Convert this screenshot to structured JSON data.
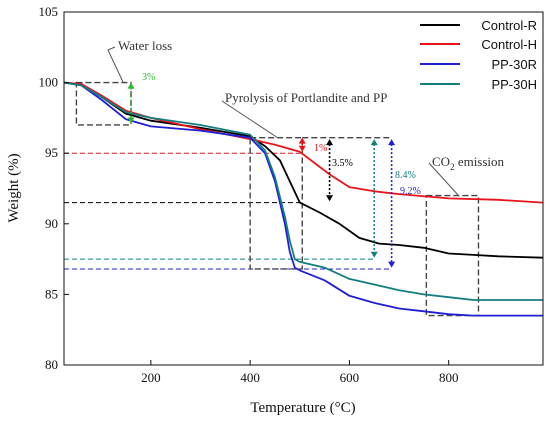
{
  "chart_data": {
    "type": "line",
    "xlabel": "Temperature (°C)",
    "ylabel": "Weight (%)",
    "xlim": [
      25,
      990
    ],
    "ylim": [
      80,
      105
    ],
    "xticks": [
      200,
      400,
      600,
      800
    ],
    "yticks": [
      80,
      85,
      90,
      95,
      100,
      105
    ],
    "legend_position": "top-right",
    "series": [
      {
        "name": "Control-R",
        "color": "#000000",
        "x": [
          25,
          60,
          100,
          150,
          200,
          300,
          400,
          430,
          460,
          480,
          500,
          540,
          580,
          620,
          660,
          700,
          750,
          800,
          850,
          900,
          990
        ],
        "y": [
          100,
          99.9,
          99.0,
          97.8,
          97.3,
          96.8,
          96.2,
          95.5,
          94.5,
          93.0,
          91.5,
          90.8,
          90.0,
          89.0,
          88.6,
          88.5,
          88.3,
          87.9,
          87.8,
          87.7,
          87.6
        ]
      },
      {
        "name": "Control-H",
        "color": "#e8141c",
        "x": [
          25,
          60,
          100,
          150,
          200,
          300,
          400,
          450,
          500,
          530,
          560,
          600,
          650,
          700,
          800,
          900,
          990
        ],
        "y": [
          100,
          99.9,
          99.1,
          98.0,
          97.5,
          96.7,
          96.0,
          95.6,
          95.1,
          94.3,
          93.5,
          92.6,
          92.3,
          92.1,
          91.8,
          91.7,
          91.5
        ]
      },
      {
        "name": "PP-30R",
        "color": "#1f1fd4",
        "x": [
          25,
          60,
          100,
          150,
          200,
          300,
          400,
          430,
          450,
          470,
          480,
          490,
          500,
          550,
          600,
          650,
          700,
          750,
          800,
          850,
          900,
          990
        ],
        "y": [
          100,
          99.8,
          98.8,
          97.4,
          96.9,
          96.6,
          96.1,
          95.0,
          93.0,
          90.0,
          88.0,
          86.9,
          86.7,
          86.0,
          84.9,
          84.4,
          84.0,
          83.8,
          83.6,
          83.5,
          83.5,
          83.5
        ]
      },
      {
        "name": "PP-30H",
        "color": "#137e80",
        "x": [
          25,
          60,
          100,
          150,
          200,
          300,
          400,
          430,
          450,
          470,
          480,
          490,
          500,
          550,
          600,
          650,
          700,
          750,
          800,
          850,
          900,
          990
        ],
        "y": [
          100,
          99.8,
          99.0,
          97.9,
          97.5,
          97.0,
          96.3,
          95.2,
          93.3,
          90.5,
          88.8,
          87.5,
          87.3,
          86.9,
          86.1,
          85.7,
          85.3,
          85.0,
          84.8,
          84.6,
          84.6,
          84.6
        ]
      }
    ],
    "annotations": {
      "water_loss": "Water loss",
      "pyrolysis": "Pyrolysis of Portlandite and PP",
      "co2_prefix": "CO",
      "co2_sub": "2",
      "co2_suffix": " emission",
      "pct_3": "3%",
      "pct_1": "1%",
      "pct_35": "3.5%",
      "pct_84": "8.4%",
      "pct_92": "9.2%"
    },
    "annotation_values": {
      "water_box": {
        "x": [
          50,
          160
        ],
        "y": [
          97,
          100
        ]
      },
      "pyro_box": {
        "x": [
          400,
          505
        ],
        "y": [
          86.8,
          96.1
        ]
      },
      "co2_box": {
        "x": [
          755,
          860
        ],
        "y": [
          83.5,
          92
        ]
      },
      "pyro_dashed_top": {
        "x": [
          505,
          685
        ],
        "y": 96.1
      },
      "ref_lines": [
        {
          "y": 95.0,
          "x_end": 505,
          "color": "#e8141c"
        },
        {
          "y": 91.5,
          "x_end": 505,
          "color": "#000000"
        },
        {
          "y": 87.5,
          "x_end": 650,
          "color": "#137e80"
        },
        {
          "y": 86.8,
          "x_end": 685,
          "color": "#1f1fd4"
        }
      ],
      "arrows": [
        {
          "x": 160,
          "y1": 97.1,
          "y2": 100,
          "color": "#2db82d"
        },
        {
          "x": 505,
          "y1": 95.1,
          "y2": 96.1,
          "color": "#e8141c"
        },
        {
          "x": 560,
          "y1": 91.6,
          "y2": 96.0,
          "color": "#000000"
        },
        {
          "x": 650,
          "y1": 87.6,
          "y2": 96.0,
          "color": "#137e80"
        },
        {
          "x": 685,
          "y1": 86.9,
          "y2": 96.0,
          "color": "#1f1fd4"
        }
      ]
    }
  }
}
